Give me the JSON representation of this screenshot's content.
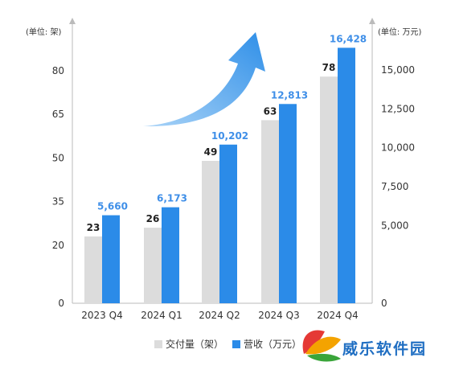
{
  "chart_data": {
    "type": "bar",
    "categories": [
      "2023 Q4",
      "2024 Q1",
      "2024 Q2",
      "2024 Q3",
      "2024 Q4"
    ],
    "series": [
      {
        "name": "交付量（架）",
        "axis": "left",
        "values": [
          23,
          26,
          49,
          63,
          78
        ],
        "labels": [
          "23",
          "26",
          "49",
          "63",
          "78"
        ],
        "color": "#dcdcdc"
      },
      {
        "name": "营收（万元）",
        "axis": "right",
        "values": [
          5660,
          6173,
          10202,
          12813,
          16428
        ],
        "labels": [
          "5,660",
          "6,173",
          "10,202",
          "12,813",
          "16,428"
        ],
        "color": "#2b8be8"
      }
    ],
    "y_left": {
      "unit_label": "(单位: 架)",
      "ticks": [
        0,
        20,
        35,
        50,
        65,
        80
      ],
      "tick_labels": [
        "0",
        "20",
        "35",
        "50",
        "65",
        "80"
      ]
    },
    "y_right": {
      "unit_label": "(单位: 万元)",
      "ticks": [
        0,
        5000,
        7500,
        10000,
        12500,
        15000
      ],
      "tick_labels": [
        "0",
        "5,000",
        "7,500",
        "10,000",
        "12,500",
        "15,000"
      ]
    },
    "legend": {
      "placement": "bottom-center"
    },
    "grid": false,
    "annotation": "upward-trend-arrow"
  },
  "colors": {
    "left_bar": "#dcdcdc",
    "right_bar": "#2b8be8",
    "right_label": "#3f8fe8",
    "arrow": "#4aa3ec"
  },
  "watermark": {
    "text": "威乐软件园",
    "icon": "leaf-logo-icon"
  }
}
